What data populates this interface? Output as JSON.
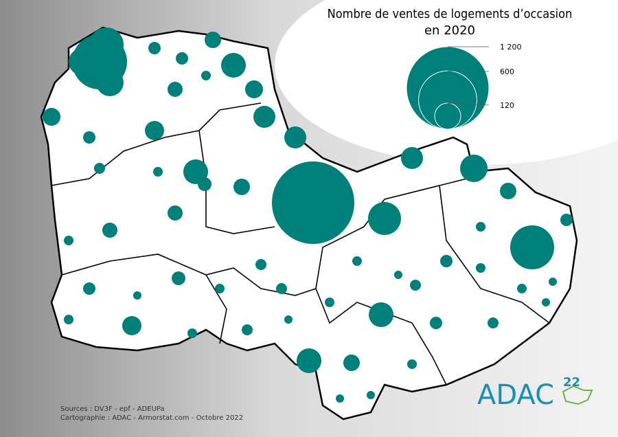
{
  "title": [
    "Nombre de ventes de logements d’occasion",
    "en 2020"
  ],
  "legend": {
    "sizes": [
      {
        "value": 1200,
        "label": "1 200"
      },
      {
        "value": 600,
        "label": "600"
      },
      {
        "value": 120,
        "label": "120"
      }
    ]
  },
  "sources": [
    "Sources : DV3F - epf - ADEUPa",
    "Cartographie : ADAC - Armorstat.com - Octobre 2022"
  ],
  "logo": {
    "name": "ADAC",
    "number": "22"
  }
}
